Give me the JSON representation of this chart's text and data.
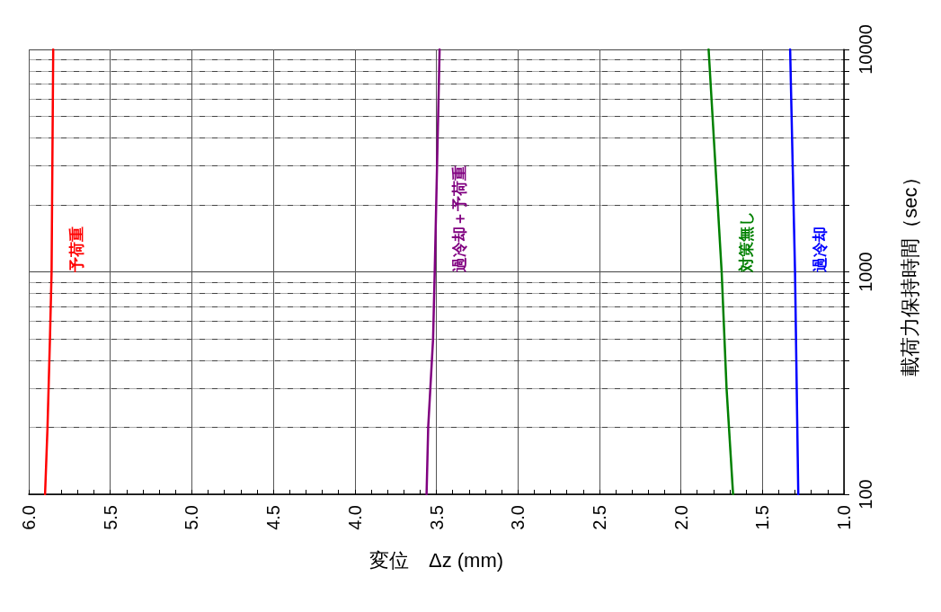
{
  "chart_data": {
    "type": "line",
    "xlabel": "変位　Δz (mm)",
    "ylabel": "載荷力保持時間（sec）",
    "log": "y",
    "grid": true,
    "legend": false,
    "marker": "none",
    "line_style": "solid",
    "xlim": [
      6.0,
      1.0
    ],
    "xticks": [
      {
        "value": 6,
        "label": "6.0"
      },
      {
        "value": 5.9,
        "label": null
      },
      {
        "value": 5.8,
        "label": null
      },
      {
        "value": 5.7,
        "label": null
      },
      {
        "value": 5.6,
        "label": null
      },
      {
        "value": 5.5,
        "label": "5.5"
      },
      {
        "value": 5.4,
        "label": null
      },
      {
        "value": 5.3,
        "label": null
      },
      {
        "value": 5.2,
        "label": null
      },
      {
        "value": 5.1,
        "label": null
      },
      {
        "value": 5,
        "label": "5.0"
      },
      {
        "value": 4.9,
        "label": null
      },
      {
        "value": 4.8,
        "label": null
      },
      {
        "value": 4.7,
        "label": null
      },
      {
        "value": 4.6,
        "label": null
      },
      {
        "value": 4.5,
        "label": "4.5"
      },
      {
        "value": 4.4,
        "label": null
      },
      {
        "value": 4.3,
        "label": null
      },
      {
        "value": 4.2,
        "label": null
      },
      {
        "value": 4.1,
        "label": null
      },
      {
        "value": 4,
        "label": "4.0"
      },
      {
        "value": 3.9,
        "label": null
      },
      {
        "value": 3.8,
        "label": null
      },
      {
        "value": 3.7,
        "label": null
      },
      {
        "value": 3.6,
        "label": null
      },
      {
        "value": 3.5,
        "label": "3.5"
      },
      {
        "value": 3.4,
        "label": null
      },
      {
        "value": 3.3,
        "label": null
      },
      {
        "value": 3.2,
        "label": null
      },
      {
        "value": 3.1,
        "label": null
      },
      {
        "value": 3,
        "label": "3.0"
      },
      {
        "value": 2.9,
        "label": null
      },
      {
        "value": 2.8,
        "label": null
      },
      {
        "value": 2.7,
        "label": null
      },
      {
        "value": 2.6,
        "label": null
      },
      {
        "value": 2.5,
        "label": "2.5"
      },
      {
        "value": 2.4,
        "label": null
      },
      {
        "value": 2.3,
        "label": null
      },
      {
        "value": 2.2,
        "label": null
      },
      {
        "value": 2.1,
        "label": null
      },
      {
        "value": 2,
        "label": "2.0"
      },
      {
        "value": 1.9,
        "label": null
      },
      {
        "value": 1.8,
        "label": null
      },
      {
        "value": 1.7,
        "label": null
      },
      {
        "value": 1.6,
        "label": null
      },
      {
        "value": 1.5,
        "label": "1.5"
      },
      {
        "value": 1.4,
        "label": null
      },
      {
        "value": 1.3,
        "label": null
      },
      {
        "value": 1.2,
        "label": null
      },
      {
        "value": 1.1,
        "label": null
      },
      {
        "value": 1,
        "label": "1.0"
      }
    ],
    "ylim": [
      100,
      10000
    ],
    "yticks": [
      100,
      {
        "value": 200,
        "label": null
      },
      {
        "value": 300,
        "label": null
      },
      {
        "value": 400,
        "label": null
      },
      {
        "value": 500,
        "label": null
      },
      {
        "value": 600,
        "label": null
      },
      {
        "value": 700,
        "label": null
      },
      {
        "value": 800,
        "label": null
      },
      {
        "value": 900,
        "label": null
      },
      1000,
      {
        "value": 2000,
        "label": null
      },
      {
        "value": 3000,
        "label": null
      },
      {
        "value": 4000,
        "label": null
      },
      {
        "value": 5000,
        "label": null
      },
      {
        "value": 6000,
        "label": null
      },
      {
        "value": 7000,
        "label": null
      },
      {
        "value": 8000,
        "label": null
      },
      {
        "value": 9000,
        "label": null
      },
      10000
    ],
    "series": [
      {
        "name": "予荷重",
        "color": "#ff0000",
        "x": [
          5.9,
          5.885,
          5.87,
          5.86,
          5.85
        ],
        "values": [
          100,
          200,
          500,
          1000,
          10000
        ]
      },
      {
        "name": "過冷却＋予荷重",
        "color": "#800080",
        "x": [
          3.56,
          3.55,
          3.52,
          3.51,
          3.48
        ],
        "values": [
          100,
          200,
          500,
          1000,
          10000
        ]
      },
      {
        "name": "対策無し",
        "color": "#008000",
        "x": [
          1.68,
          1.72,
          1.75,
          1.83
        ],
        "values": [
          100,
          300,
          1000,
          10000
        ]
      },
      {
        "name": "過冷却",
        "color": "#0000ff",
        "x": [
          1.28,
          1.3,
          1.33
        ],
        "values": [
          100,
          1000,
          10000
        ]
      }
    ]
  }
}
